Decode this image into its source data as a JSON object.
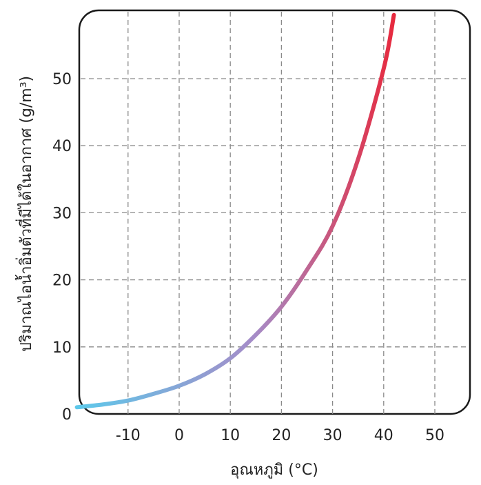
{
  "chart_data": {
    "type": "line",
    "title": "",
    "xlabel": "อุณหภูมิ (°C)",
    "ylabel": "ปริมาณไอน้ำอิ่มตัวที่มีได้ในอากาศ (g/m³)",
    "xlim": [
      -20,
      55
    ],
    "ylim": [
      0,
      60
    ],
    "xticks": [
      -10,
      0,
      10,
      20,
      30,
      40,
      50
    ],
    "yticks": [
      0,
      10,
      20,
      30,
      40,
      50
    ],
    "xtick_labels": [
      "-10",
      "0",
      "10",
      "20",
      "30",
      "40",
      "50"
    ],
    "ytick_labels": [
      "0",
      "10",
      "20",
      "30",
      "40",
      "50"
    ],
    "grid": true,
    "gradient_colors": {
      "start": "#5ec8ea",
      "mid": "#a58cc8",
      "end": "#e8283c"
    },
    "series": [
      {
        "x": [
          -20,
          -15,
          -10,
          -5,
          0,
          5,
          10,
          15,
          20,
          25,
          30,
          35,
          40,
          42
        ],
        "y": [
          1.0,
          1.4,
          2.0,
          3.0,
          4.2,
          5.9,
          8.3,
          11.8,
          16.0,
          21.5,
          28.0,
          38.0,
          51.5,
          59.5
        ]
      }
    ]
  }
}
